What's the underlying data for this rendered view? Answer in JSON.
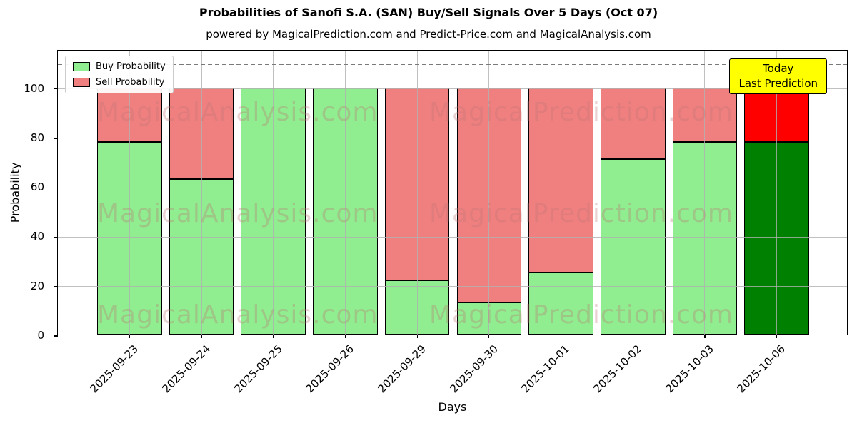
{
  "title": "Probabilities of Sanofi S.A. (SAN) Buy/Sell Signals Over 5 Days (Oct 07)",
  "subtitle": "powered by MagicalPrediction.com and Predict-Price.com and MagicalAnalysis.com",
  "axes": {
    "xlabel": "Days",
    "ylabel": "Probability",
    "yticks": [
      0,
      20,
      40,
      60,
      80,
      100
    ],
    "ylim": [
      0,
      115.5
    ]
  },
  "legend": {
    "items": [
      {
        "label": "Buy Probability",
        "color": "#90ee90"
      },
      {
        "label": "Sell Probability",
        "color": "#f08080"
      }
    ]
  },
  "annotation": {
    "line1": "Today",
    "line2": "Last Prediction",
    "bg_color": "#ffff00"
  },
  "watermarks": {
    "left_text": "MagicalAnalysis.com",
    "right_text": "MagicalPrediction.com",
    "rows": 3
  },
  "chart_data": {
    "type": "bar",
    "stacked": true,
    "title": "Probabilities of Sanofi S.A. (SAN) Buy/Sell Signals Over 5 Days (Oct 07)",
    "xlabel": "Days",
    "ylabel": "Probability",
    "ylim": [
      0,
      115.5
    ],
    "yticks": [
      0,
      20,
      40,
      60,
      80,
      100
    ],
    "grid": true,
    "legend_position": "upper left",
    "dashed_line_y": 110,
    "categories": [
      "2025-09-23",
      "2025-09-24",
      "2025-09-25",
      "2025-09-26",
      "2025-09-29",
      "2025-09-30",
      "2025-10-01",
      "2025-10-02",
      "2025-10-03",
      "2025-10-06"
    ],
    "series": [
      {
        "name": "Buy Probability",
        "color": "#90ee90",
        "today_color": "#008000",
        "values": [
          78,
          63,
          100,
          100,
          22,
          13,
          25,
          71,
          78,
          78
        ]
      },
      {
        "name": "Sell Probability",
        "color": "#f08080",
        "today_color": "#ff0000",
        "values": [
          22,
          37,
          0,
          0,
          78,
          87,
          75,
          29,
          22,
          22
        ]
      }
    ],
    "today_index": 9,
    "bar_edge_color": "#000000"
  }
}
